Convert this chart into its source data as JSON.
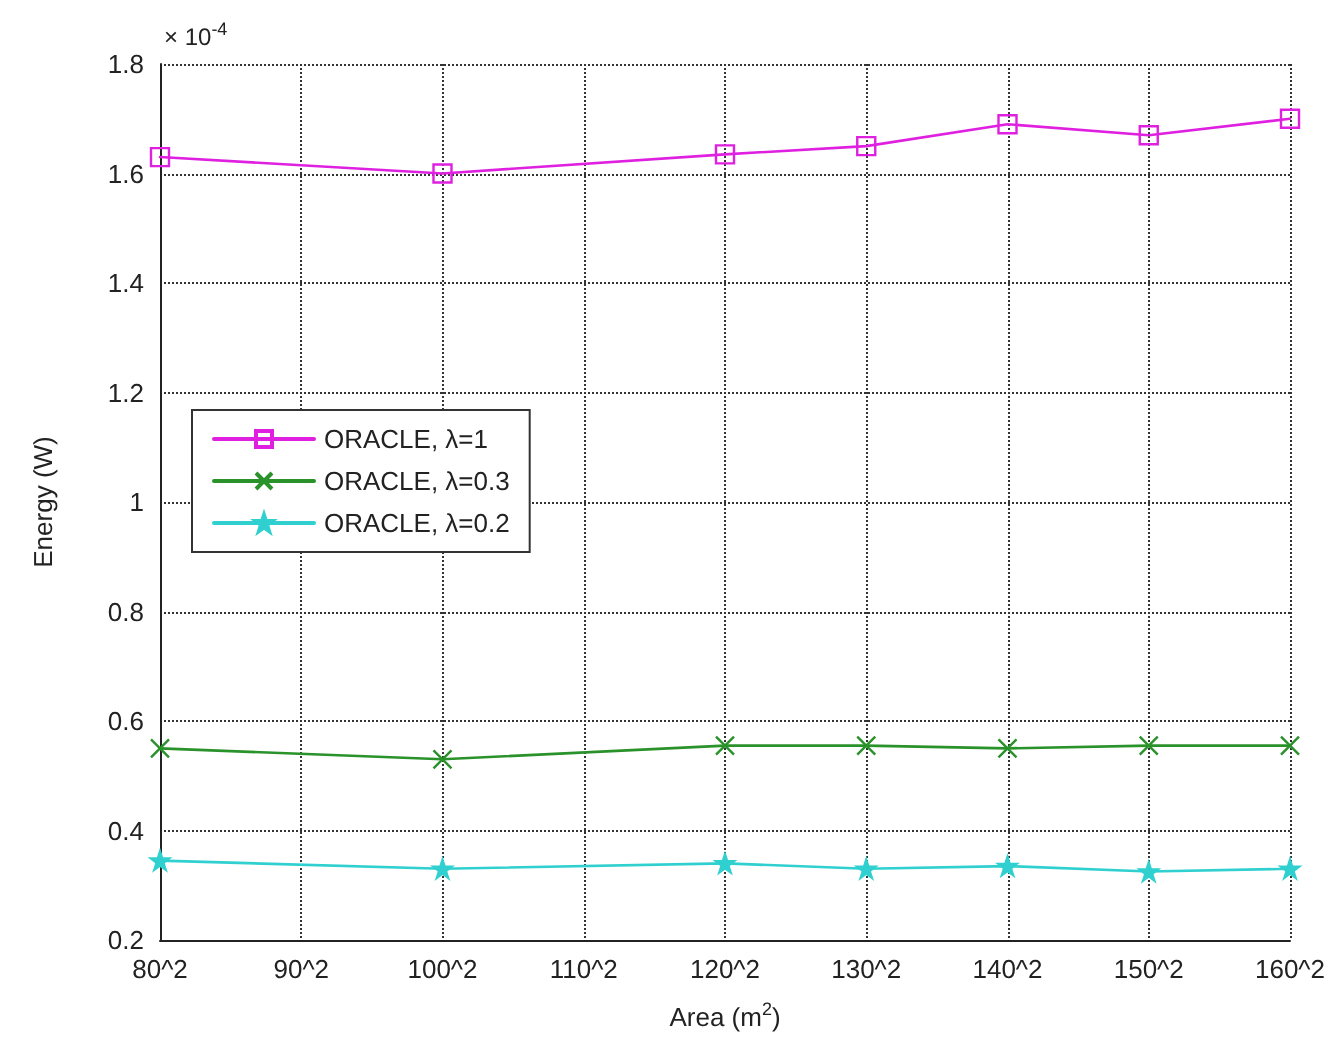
{
  "chart_data": {
    "type": "line",
    "xlabel": "Area (m$^{2}$)",
    "ylabel": "Energy (W)",
    "annotations": [
      "× 10$^{-4}$"
    ],
    "categories": [
      "80^2",
      "90^2",
      "100^2",
      "110^2",
      "120^2",
      "130^2",
      "140^2",
      "150^2",
      "160^2"
    ],
    "series": [
      {
        "name": "ORACLE, λ=1",
        "color": "#e020e0",
        "marker": "square",
        "values": [
          1.63,
          null,
          1.6,
          null,
          1.635,
          1.65,
          1.69,
          1.67,
          1.7
        ]
      },
      {
        "name": "ORACLE, λ=0.3",
        "color": "#2a922a",
        "marker": "cross",
        "values": [
          0.55,
          null,
          0.53,
          null,
          0.555,
          0.555,
          0.55,
          0.555,
          0.555
        ]
      },
      {
        "name": "ORACLE, λ=0.2",
        "color": "#30d0d0",
        "marker": "star",
        "values": [
          0.345,
          null,
          0.33,
          null,
          0.34,
          0.33,
          0.335,
          0.325,
          0.33
        ]
      }
    ],
    "ylim": [
      0.2,
      1.8
    ],
    "yticks": [
      0.2,
      0.4,
      0.6,
      0.8,
      1,
      1.2,
      1.4,
      1.6,
      1.8
    ],
    "grid": true,
    "legend": "left",
    "line_style": "solid"
  }
}
